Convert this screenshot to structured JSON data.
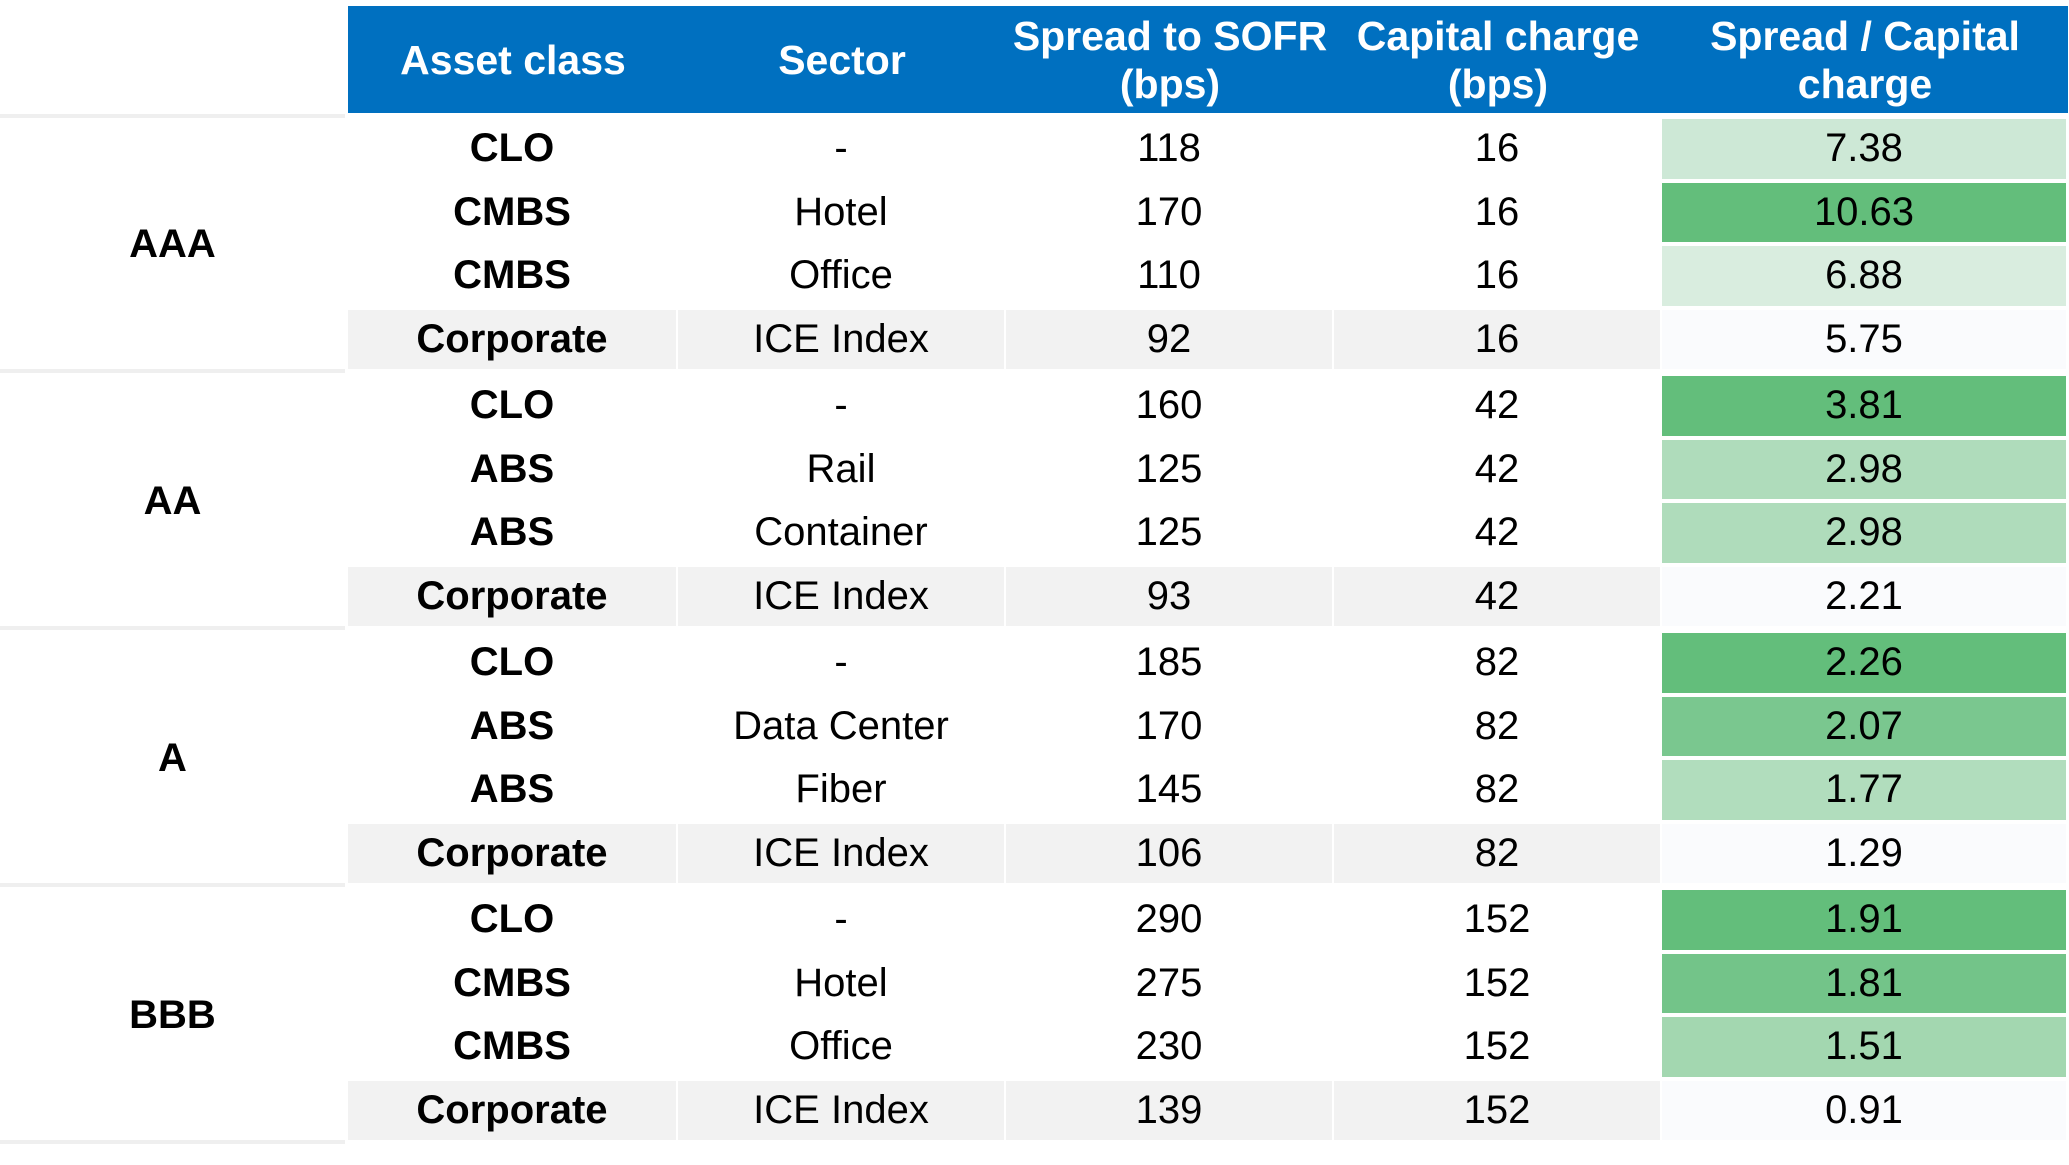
{
  "table": {
    "headers": [
      "Asset class",
      "Sector",
      "Spread to SOFR\n(bps)",
      "Capital charge\n(bps)",
      "Spread / Capital\ncharge"
    ],
    "groups": [
      {
        "rating": "AAA",
        "rows": [
          {
            "asset_class": "CLO",
            "sector": "-",
            "spread": "118",
            "capital_charge": "16",
            "ratio": "7.38",
            "shade": "#cde8d6"
          },
          {
            "asset_class": "CMBS",
            "sector": "Hotel",
            "spread": "170",
            "capital_charge": "16",
            "ratio": "10.63",
            "shade": "#63be7b"
          },
          {
            "asset_class": "CMBS",
            "sector": "Office",
            "spread": "110",
            "capital_charge": "16",
            "ratio": "6.88",
            "shade": "#d9eddf"
          },
          {
            "asset_class": "Corporate",
            "sector": "ICE Index",
            "spread": "92",
            "capital_charge": "16",
            "ratio": "5.75",
            "shade": "#fafbfd"
          }
        ]
      },
      {
        "rating": "AA",
        "rows": [
          {
            "asset_class": "CLO",
            "sector": "-",
            "spread": "160",
            "capital_charge": "42",
            "ratio": "3.81",
            "shade": "#63be7b"
          },
          {
            "asset_class": "ABS",
            "sector": "Rail",
            "spread": "125",
            "capital_charge": "42",
            "ratio": "2.98",
            "shade": "#afdcbb"
          },
          {
            "asset_class": "ABS",
            "sector": "Container",
            "spread": "125",
            "capital_charge": "42",
            "ratio": "2.98",
            "shade": "#afdcbb"
          },
          {
            "asset_class": "Corporate",
            "sector": "ICE Index",
            "spread": "93",
            "capital_charge": "42",
            "ratio": "2.21",
            "shade": "#fafbfd"
          }
        ]
      },
      {
        "rating": "A",
        "rows": [
          {
            "asset_class": "CLO",
            "sector": "-",
            "spread": "185",
            "capital_charge": "82",
            "ratio": "2.26",
            "shade": "#63be7b"
          },
          {
            "asset_class": "ABS",
            "sector": "Data Center",
            "spread": "170",
            "capital_charge": "82",
            "ratio": "2.07",
            "shade": "#7ac78f"
          },
          {
            "asset_class": "ABS",
            "sector": "Fiber",
            "spread": "145",
            "capital_charge": "82",
            "ratio": "1.77",
            "shade": "#b1ddbd"
          },
          {
            "asset_class": "Corporate",
            "sector": "ICE Index",
            "spread": "106",
            "capital_charge": "82",
            "ratio": "1.29",
            "shade": "#fafbfd"
          }
        ]
      },
      {
        "rating": "BBB",
        "rows": [
          {
            "asset_class": "CLO",
            "sector": "-",
            "spread": "290",
            "capital_charge": "152",
            "ratio": "1.91",
            "shade": "#63be7b"
          },
          {
            "asset_class": "CMBS",
            "sector": "Hotel",
            "spread": "275",
            "capital_charge": "152",
            "ratio": "1.81",
            "shade": "#73c489"
          },
          {
            "asset_class": "CMBS",
            "sector": "Office",
            "spread": "230",
            "capital_charge": "152",
            "ratio": "1.51",
            "shade": "#a3d7b0"
          },
          {
            "asset_class": "Corporate",
            "sector": "ICE Index",
            "spread": "139",
            "capital_charge": "152",
            "ratio": "0.91",
            "shade": "#fafbfd"
          }
        ]
      }
    ],
    "colors": {
      "header_bg": "#0070C0",
      "header_text": "#ffffff",
      "row_light": "#ffffff",
      "row_grey": "#f2f2f2"
    }
  },
  "chart_data": {
    "type": "table",
    "columns": [
      "Asset class",
      "Sector",
      "Spread to SOFR (bps)",
      "Capital charge (bps)",
      "Spread / Capital charge"
    ],
    "row_groups": [
      "AAA",
      "AA",
      "A",
      "BBB"
    ],
    "rows": [
      [
        "AAA",
        "CLO",
        "-",
        118,
        16,
        7.38
      ],
      [
        "AAA",
        "CMBS",
        "Hotel",
        170,
        16,
        10.63
      ],
      [
        "AAA",
        "CMBS",
        "Office",
        110,
        16,
        6.88
      ],
      [
        "AAA",
        "Corporate",
        "ICE Index",
        92,
        16,
        5.75
      ],
      [
        "AA",
        "CLO",
        "-",
        160,
        42,
        3.81
      ],
      [
        "AA",
        "ABS",
        "Rail",
        125,
        42,
        2.98
      ],
      [
        "AA",
        "ABS",
        "Container",
        125,
        42,
        2.98
      ],
      [
        "AA",
        "Corporate",
        "ICE Index",
        93,
        42,
        2.21
      ],
      [
        "A",
        "CLO",
        "-",
        185,
        82,
        2.26
      ],
      [
        "A",
        "ABS",
        "Data Center",
        170,
        82,
        2.07
      ],
      [
        "A",
        "ABS",
        "Fiber",
        145,
        82,
        1.77
      ],
      [
        "A",
        "Corporate",
        "ICE Index",
        106,
        82,
        1.29
      ],
      [
        "BBB",
        "CLO",
        "-",
        290,
        152,
        1.91
      ],
      [
        "BBB",
        "CMBS",
        "Hotel",
        275,
        152,
        1.81
      ],
      [
        "BBB",
        "CMBS",
        "Office",
        230,
        152,
        1.51
      ],
      [
        "BBB",
        "Corporate",
        "ICE Index",
        139,
        152,
        0.91
      ]
    ]
  }
}
